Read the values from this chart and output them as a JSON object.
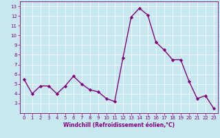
{
  "x": [
    0,
    1,
    2,
    3,
    4,
    5,
    6,
    7,
    8,
    9,
    10,
    11,
    12,
    13,
    14,
    15,
    16,
    17,
    18,
    19,
    20,
    21,
    22,
    23
  ],
  "y": [
    5.5,
    4.0,
    4.8,
    4.8,
    4.0,
    4.8,
    5.8,
    5.0,
    4.4,
    4.2,
    3.5,
    3.2,
    7.7,
    11.9,
    12.8,
    12.1,
    9.3,
    8.5,
    7.5,
    7.5,
    5.3,
    3.5,
    3.8,
    2.5
  ],
  "line_color": "#800080",
  "marker": "D",
  "marker_size": 2.2,
  "bg_color": "#c8e8f0",
  "grid_color": "#ffffff",
  "xlabel": "Windchill (Refroidissement éolien,°C)",
  "xlabel_color": "#800080",
  "tick_color": "#800080",
  "ylim": [
    2.0,
    13.5
  ],
  "xlim": [
    -0.5,
    23.5
  ],
  "yticks": [
    3,
    4,
    5,
    6,
    7,
    8,
    9,
    10,
    11,
    12,
    13
  ],
  "xticks": [
    0,
    1,
    2,
    3,
    4,
    5,
    6,
    7,
    8,
    9,
    10,
    11,
    12,
    13,
    14,
    15,
    16,
    17,
    18,
    19,
    20,
    21,
    22,
    23
  ],
  "spine_color": "#800080",
  "linewidth": 1.0,
  "tick_fontsize": 5.0,
  "xlabel_fontsize": 5.5
}
